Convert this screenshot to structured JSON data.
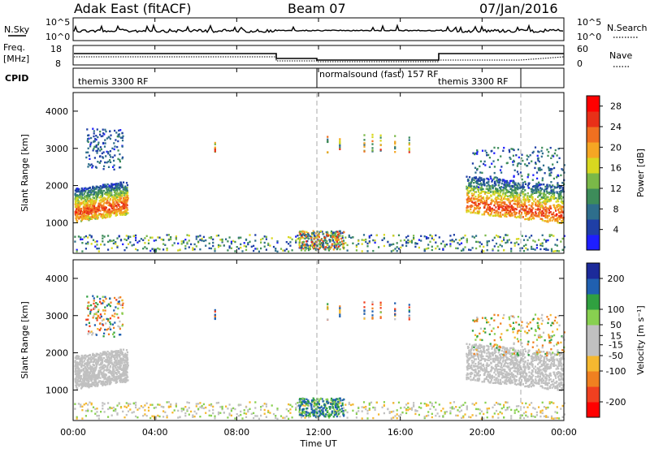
{
  "header": {
    "station": "Adak East (fitACF)",
    "beam": "Beam 07",
    "date": "07/Jan/2016"
  },
  "nsky_panel": {
    "left_label": "N.Sky",
    "left_ticks": [
      "10^5",
      "10^0"
    ],
    "right_ticks": [
      "10^5",
      "10^0"
    ],
    "right_label": "N.Search"
  },
  "freq_panel": {
    "left_label_1": "Freq.",
    "left_label_2": "[MHz]",
    "left_ticks": [
      "18",
      "8"
    ],
    "right_ticks": [
      "60",
      "0"
    ],
    "right_label": "Nave"
  },
  "cpid_panel": {
    "label": "CPID",
    "segments": [
      "themis 3300 RF",
      "normalsound (fast) 157 RF",
      "themis 3300 RF"
    ]
  },
  "colors": {
    "power_scale": [
      "#1e1eff",
      "#1f3fa6",
      "#2e6e8c",
      "#3d8c5a",
      "#7ab848",
      "#d8d820",
      "#f5a623",
      "#f07020",
      "#e83018",
      "#ff0000"
    ],
    "velocity_scale": [
      "#ff0000",
      "#f04020",
      "#f08020",
      "#f5b830",
      "#c0c0c0",
      "#c0c0c0",
      "#88d050",
      "#30a040",
      "#2060b0",
      "#1c2a9a"
    ]
  },
  "chart_data": [
    {
      "type": "heatmap",
      "panel": "power",
      "ylabel": "Slant Range [km]",
      "yticks": [
        "1000",
        "2000",
        "3000",
        "4000"
      ],
      "ylim": [
        180,
        4500
      ],
      "xlim_hours": [
        0,
        24
      ],
      "colorbar_label": "Power [dB]",
      "colorbar_ticks": [
        "4",
        "8",
        "12",
        "16",
        "20",
        "24",
        "28"
      ],
      "colorbar_range": [
        0,
        30
      ]
    },
    {
      "type": "heatmap",
      "panel": "velocity",
      "ylabel": "Slant Range [km]",
      "yticks": [
        "1000",
        "2000",
        "3000",
        "4000"
      ],
      "ylim": [
        180,
        4500
      ],
      "xlim_hours": [
        0,
        24
      ],
      "xlabel": "Time UT",
      "xticks": [
        "00:00",
        "04:00",
        "08:00",
        "12:00",
        "16:00",
        "20:00",
        "00:00"
      ],
      "colorbar_label": "Velocity [m s⁻¹]",
      "colorbar_ticks": [
        "200",
        "100",
        "50",
        "15",
        "-15",
        "-50",
        "-100",
        "-200"
      ],
      "colorbar_range": [
        -250,
        250
      ]
    }
  ]
}
